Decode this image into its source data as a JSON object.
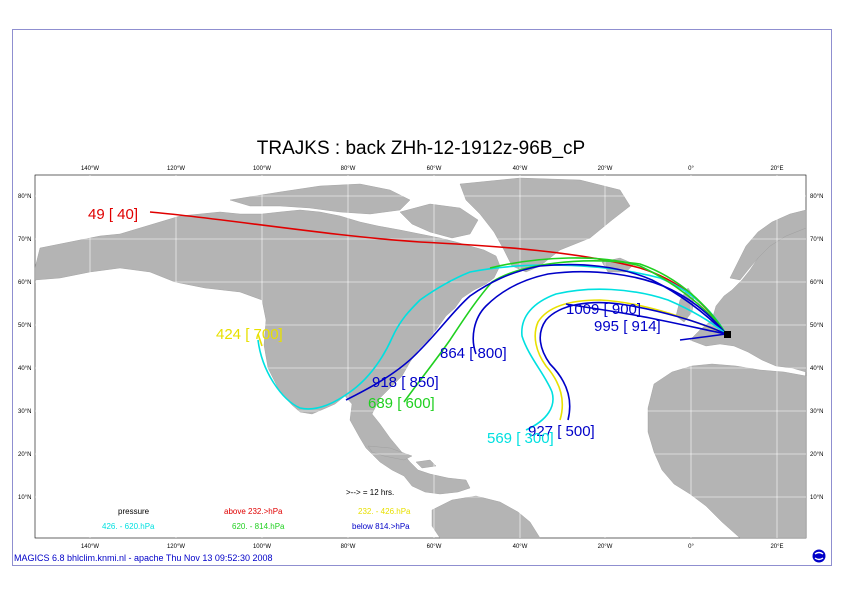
{
  "title": "TRAJKS : back ZHh-12-1912z-96B_cP",
  "footer": "MAGICS 6.8 bhlclim.knmi.nl - apache Thu Nov 13 09:52:30 2008",
  "lon_ticks": [
    "140°W",
    "120°W",
    "100°W",
    "80°W",
    "60°W",
    "40°W",
    "20°W",
    "0°",
    "20°E"
  ],
  "lat_ticks": [
    "80°N",
    "70°N",
    "60°N",
    "50°N",
    "40°N",
    "30°N",
    "20°N",
    "10°N"
  ],
  "trajectory_labels": [
    {
      "text": "49 [ 40]",
      "color": "#e00000"
    },
    {
      "text": "424 [ 700]",
      "color": "#e8e000"
    },
    {
      "text": "864 [ 800]",
      "color": "#0000c8"
    },
    {
      "text": "918 [ 850]",
      "color": "#0000c8"
    },
    {
      "text": "689 [ 600]",
      "color": "#20d020"
    },
    {
      "text": "1009 [ 900]",
      "color": "#0000c8"
    },
    {
      "text": "995 [ 914]",
      "color": "#0000c8"
    },
    {
      "text": "927 [ 500]",
      "color": "#0000c8"
    },
    {
      "text": "569 [ 300]",
      "color": "#00e0e0"
    }
  ],
  "legend": {
    "interval": ">--> = 12 hrs.",
    "pressure": "pressure",
    "items": [
      {
        "text": "above   232.>hPa",
        "color": "#e00000"
      },
      {
        "text": "232. -    426.hPa",
        "color": "#e8e000"
      },
      {
        "text": "426. -    620.hPa",
        "color": "#00e0e0"
      },
      {
        "text": "620. -    814.hPa",
        "color": "#20d020"
      },
      {
        "text": "below   814.>hPa",
        "color": "#0000c8"
      }
    ]
  },
  "colors": {
    "land": "#b4b4b4",
    "frame": "#8f8fd0",
    "red": "#e00000",
    "yellow": "#e8e000",
    "cyan": "#00e0e0",
    "green": "#20d020",
    "blue": "#0000c8"
  }
}
